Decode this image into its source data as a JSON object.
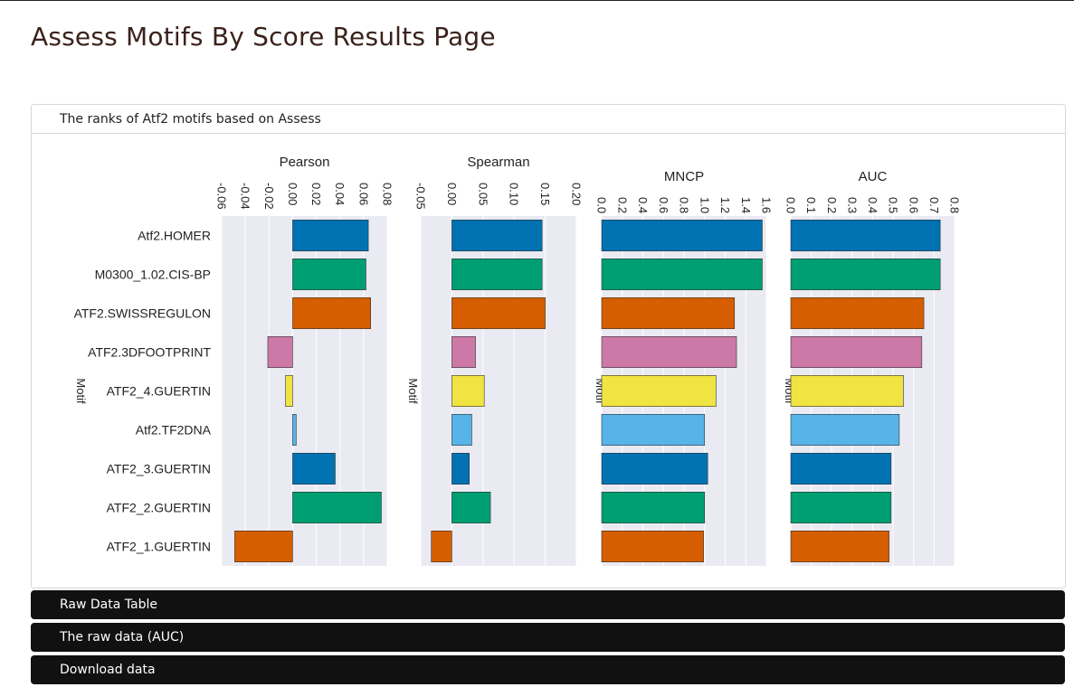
{
  "page": {
    "title": "Assess Motifs By Score Results Page"
  },
  "panel": {
    "header": "The ranks of Atf2 motifs based on Assess"
  },
  "accordions": [
    {
      "label": "Raw Data Table"
    },
    {
      "label": "The raw data (AUC)"
    },
    {
      "label": "Download data"
    }
  ],
  "colors": {
    "plot_bg": "#eaeaf2",
    "palette": [
      "#0072b2",
      "#009e73",
      "#d55e00",
      "#cc79a7",
      "#f0e442",
      "#56b4e9",
      "#0072b2",
      "#009e73",
      "#d55e00"
    ]
  },
  "chart_data": [
    {
      "type": "bar",
      "orientation": "horizontal",
      "title": "Pearson",
      "ylabel": "Motif",
      "categories": [
        "Atf2.HOMER",
        "M0300_1.02.CIS-BP",
        "ATF2.SWISSREGULON",
        "ATF2.3DFOOTPRINT",
        "ATF2_4.GUERTIN",
        "Atf2.TF2DNA",
        "ATF2_3.GUERTIN",
        "ATF2_2.GUERTIN",
        "ATF2_1.GUERTIN"
      ],
      "values": [
        0.064,
        0.062,
        0.066,
        -0.021,
        -0.006,
        0.003,
        0.036,
        0.075,
        -0.049
      ],
      "xlim": [
        -0.06,
        0.08
      ],
      "xticks": [
        "-0.06",
        "-0.04",
        "-0.02",
        "0.00",
        "0.02",
        "0.04",
        "0.06",
        "0.08"
      ],
      "grid": true
    },
    {
      "type": "bar",
      "orientation": "horizontal",
      "title": "Spearman",
      "ylabel": "Motif",
      "categories": [
        "Atf2.HOMER",
        "M0300_1.02.CIS-BP",
        "ATF2.SWISSREGULON",
        "ATF2.3DFOOTPRINT",
        "ATF2_4.GUERTIN",
        "Atf2.TF2DNA",
        "ATF2_3.GUERTIN",
        "ATF2_2.GUERTIN",
        "ATF2_1.GUERTIN"
      ],
      "values": [
        0.145,
        0.145,
        0.15,
        0.038,
        0.052,
        0.032,
        0.028,
        0.062,
        -0.033
      ],
      "xlim": [
        -0.05,
        0.2
      ],
      "xticks": [
        "-0.05",
        "0.00",
        "0.05",
        "0.10",
        "0.15",
        "0.20"
      ],
      "grid": true
    },
    {
      "type": "bar",
      "orientation": "horizontal",
      "title": "MNCP",
      "ylabel": "Motif",
      "categories": [
        "Atf2.HOMER",
        "M0300_1.02.CIS-BP",
        "ATF2.SWISSREGULON",
        "ATF2.3DFOOTPRINT",
        "ATF2_4.GUERTIN",
        "Atf2.TF2DNA",
        "ATF2_3.GUERTIN",
        "ATF2_2.GUERTIN",
        "ATF2_1.GUERTIN"
      ],
      "values": [
        1.56,
        1.56,
        1.29,
        1.31,
        1.11,
        1.0,
        1.03,
        1.0,
        0.99
      ],
      "xlim": [
        0,
        1.6
      ],
      "xticks": [
        "0.0",
        "0.2",
        "0.4",
        "0.6",
        "0.8",
        "1.0",
        "1.2",
        "1.4",
        "1.6"
      ],
      "grid": true
    },
    {
      "type": "bar",
      "orientation": "horizontal",
      "title": "AUC",
      "ylabel": "Motif",
      "categories": [
        "Atf2.HOMER",
        "M0300_1.02.CIS-BP",
        "ATF2.SWISSREGULON",
        "ATF2.3DFOOTPRINT",
        "ATF2_4.GUERTIN",
        "Atf2.TF2DNA",
        "ATF2_3.GUERTIN",
        "ATF2_2.GUERTIN",
        "ATF2_1.GUERTIN"
      ],
      "values": [
        0.73,
        0.73,
        0.65,
        0.64,
        0.55,
        0.53,
        0.49,
        0.49,
        0.48
      ],
      "xlim": [
        0,
        0.8
      ],
      "xticks": [
        "0.0",
        "0.1",
        "0.2",
        "0.3",
        "0.4",
        "0.5",
        "0.6",
        "0.7",
        "0.8"
      ],
      "grid": true
    }
  ]
}
